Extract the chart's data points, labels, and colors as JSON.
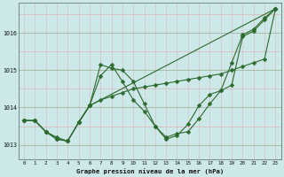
{
  "title": "Graphe pression niveau de la mer (hPa)",
  "bg_color": "#cce8e8",
  "line_color": "#2d6a2d",
  "xlim": [
    -0.5,
    23.5
  ],
  "ylim": [
    1012.6,
    1016.8
  ],
  "yticks": [
    1013,
    1014,
    1015,
    1016
  ],
  "xticks": [
    0,
    1,
    2,
    3,
    4,
    5,
    6,
    7,
    8,
    9,
    10,
    11,
    12,
    13,
    14,
    15,
    16,
    17,
    18,
    19,
    20,
    21,
    22,
    23
  ],
  "series": [
    {
      "x": [
        0,
        1,
        2,
        3,
        4,
        5,
        6,
        7,
        8,
        9,
        10,
        11,
        12,
        13,
        14,
        15,
        16,
        17,
        18,
        19,
        20,
        21,
        22,
        23
      ],
      "y": [
        1013.65,
        1013.65,
        1013.35,
        1013.15,
        1013.1,
        1013.6,
        1014.05,
        1015.15,
        1015.05,
        1015.0,
        1014.7,
        1014.1,
        1013.5,
        1013.2,
        1013.3,
        1013.35,
        1013.7,
        1014.1,
        1014.45,
        1015.2,
        1015.95,
        1016.1,
        1016.4,
        1016.65
      ]
    },
    {
      "x": [
        0,
        1,
        2,
        3,
        4,
        5,
        6,
        7,
        8,
        9,
        10,
        11,
        12,
        13,
        14,
        15,
        16,
        17,
        18,
        19,
        20,
        21,
        22,
        23
      ],
      "y": [
        1013.65,
        1013.65,
        1013.35,
        1013.2,
        1013.1,
        1013.6,
        1014.05,
        1014.2,
        1014.3,
        1014.4,
        1014.5,
        1014.55,
        1014.6,
        1014.65,
        1014.7,
        1014.75,
        1014.8,
        1014.85,
        1014.9,
        1015.0,
        1015.1,
        1015.2,
        1015.3,
        1016.65
      ]
    },
    {
      "x": [
        0,
        1,
        2,
        3,
        4,
        5,
        6,
        23
      ],
      "y": [
        1013.65,
        1013.65,
        1013.35,
        1013.15,
        1013.1,
        1013.6,
        1014.05,
        1016.65
      ]
    },
    {
      "x": [
        5,
        6,
        7,
        8,
        9,
        10,
        11,
        12,
        13,
        14,
        15,
        16,
        17,
        18,
        19,
        20,
        21,
        22,
        23
      ],
      "y": [
        1013.6,
        1014.05,
        1014.85,
        1015.15,
        1014.7,
        1014.2,
        1013.9,
        1013.5,
        1013.15,
        1013.25,
        1013.55,
        1014.05,
        1014.35,
        1014.45,
        1014.6,
        1015.9,
        1016.05,
        1016.35,
        1016.65
      ]
    }
  ],
  "grid_minor_color": "#dab8b8",
  "grid_major_h_color": "#aabcaa",
  "grid_major_v_color": "#aabcaa"
}
